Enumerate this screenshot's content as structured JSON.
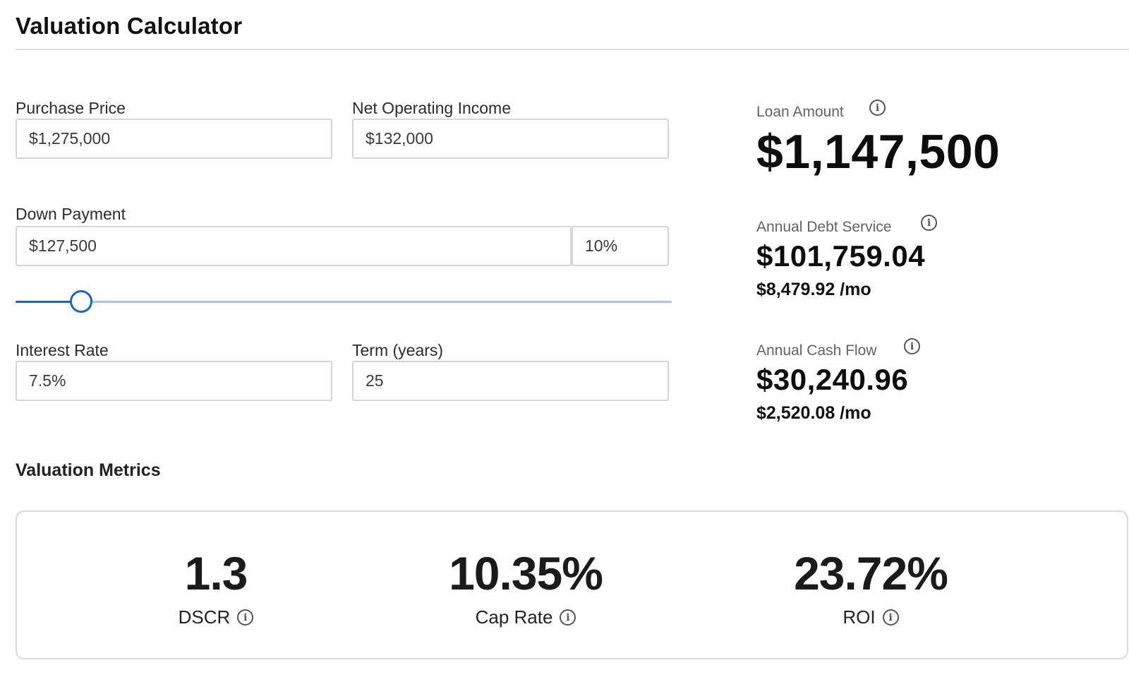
{
  "header": {
    "title": "Valuation Calculator"
  },
  "inputs": {
    "purchase_price": {
      "label": "Purchase Price",
      "value": "$1,275,000"
    },
    "noi": {
      "label": "Net Operating Income",
      "value": "$132,000"
    },
    "down_payment": {
      "label": "Down Payment",
      "value": "$127,500",
      "percent": "10%",
      "slider_percent": 10
    },
    "interest_rate": {
      "label": "Interest Rate",
      "value": "7.5%"
    },
    "term": {
      "label": "Term (years)",
      "value": "25"
    }
  },
  "results": {
    "loan_amount": {
      "label": "Loan Amount",
      "value": "$1,147,500"
    },
    "annual_debt_service": {
      "label": "Annual Debt Service",
      "value": "$101,759.04",
      "monthly": "$8,479.92 /mo"
    },
    "annual_cash_flow": {
      "label": "Annual Cash Flow",
      "value": "$30,240.96",
      "monthly": "$2,520.08 /mo"
    }
  },
  "metrics": {
    "title": "Valuation Metrics",
    "items": [
      {
        "value": "1.3",
        "label": "DSCR"
      },
      {
        "value": "10.35%",
        "label": "Cap Rate"
      },
      {
        "value": "23.72%",
        "label": "ROI"
      }
    ]
  },
  "icons": {
    "info": "info-icon",
    "info_glyph": "i"
  },
  "colors": {
    "accent": "#1f63c9",
    "track": "#a9c4ec",
    "border": "#d4d4d4"
  }
}
